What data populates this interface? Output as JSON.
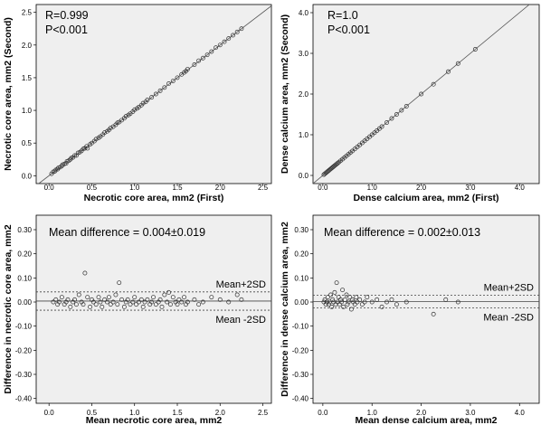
{
  "colors": {
    "panel_bg": "#efefef",
    "marker": "#333333",
    "ref_line": "#555555"
  },
  "chart_data": [
    {
      "type": "scatter",
      "id": "nc-corr",
      "xlabel": "Necrotic core area, mm2 (First)",
      "ylabel": "Necrotic core area, mm2 (Second)",
      "annotations": [
        "R=0.999",
        "P<0.001"
      ],
      "xlim": [
        -0.15,
        2.6
      ],
      "ylim": [
        -0.12,
        2.62
      ],
      "xticks": [
        "0.0",
        "0.5",
        "1.0",
        "1.5",
        "2.0",
        "2.5"
      ],
      "yticks": [
        "0.0",
        "0.5",
        "1.0",
        "1.5",
        "2.0",
        "2.5"
      ],
      "identity_line": true,
      "points": [
        [
          0.03,
          0.03
        ],
        [
          0.05,
          0.06
        ],
        [
          0.07,
          0.07
        ],
        [
          0.08,
          0.09
        ],
        [
          0.1,
          0.1
        ],
        [
          0.11,
          0.12
        ],
        [
          0.13,
          0.13
        ],
        [
          0.15,
          0.15
        ],
        [
          0.16,
          0.17
        ],
        [
          0.18,
          0.18
        ],
        [
          0.2,
          0.19
        ],
        [
          0.21,
          0.22
        ],
        [
          0.23,
          0.23
        ],
        [
          0.25,
          0.25
        ],
        [
          0.26,
          0.27
        ],
        [
          0.28,
          0.28
        ],
        [
          0.3,
          0.31
        ],
        [
          0.32,
          0.31
        ],
        [
          0.34,
          0.35
        ],
        [
          0.36,
          0.36
        ],
        [
          0.38,
          0.38
        ],
        [
          0.4,
          0.41
        ],
        [
          0.42,
          0.42
        ],
        [
          0.44,
          0.45
        ],
        [
          0.45,
          0.42
        ],
        [
          0.48,
          0.48
        ],
        [
          0.5,
          0.5
        ],
        [
          0.53,
          0.53
        ],
        [
          0.55,
          0.56
        ],
        [
          0.58,
          0.58
        ],
        [
          0.6,
          0.6
        ],
        [
          0.63,
          0.63
        ],
        [
          0.65,
          0.66
        ],
        [
          0.68,
          0.68
        ],
        [
          0.7,
          0.7
        ],
        [
          0.72,
          0.73
        ],
        [
          0.75,
          0.75
        ],
        [
          0.78,
          0.78
        ],
        [
          0.8,
          0.81
        ],
        [
          0.82,
          0.82
        ],
        [
          0.85,
          0.85
        ],
        [
          0.88,
          0.88
        ],
        [
          0.9,
          0.91
        ],
        [
          0.93,
          0.93
        ],
        [
          0.95,
          0.95
        ],
        [
          0.98,
          0.98
        ],
        [
          1.0,
          1.01
        ],
        [
          1.03,
          1.03
        ],
        [
          1.05,
          1.05
        ],
        [
          1.08,
          1.08
        ],
        [
          1.1,
          1.11
        ],
        [
          1.13,
          1.13
        ],
        [
          1.15,
          1.16
        ],
        [
          1.2,
          1.2
        ],
        [
          1.25,
          1.25
        ],
        [
          1.3,
          1.3
        ],
        [
          1.35,
          1.35
        ],
        [
          1.4,
          1.41
        ],
        [
          1.45,
          1.45
        ],
        [
          1.5,
          1.5
        ],
        [
          1.55,
          1.55
        ],
        [
          1.58,
          1.58
        ],
        [
          1.6,
          1.6
        ],
        [
          1.62,
          1.63
        ],
        [
          1.7,
          1.7
        ],
        [
          1.75,
          1.76
        ],
        [
          1.8,
          1.8
        ],
        [
          1.85,
          1.85
        ],
        [
          1.9,
          1.9
        ],
        [
          1.95,
          1.96
        ],
        [
          2.0,
          2.0
        ],
        [
          2.05,
          2.05
        ],
        [
          2.1,
          2.1
        ],
        [
          2.15,
          2.15
        ],
        [
          2.2,
          2.2
        ],
        [
          2.25,
          2.25
        ]
      ]
    },
    {
      "type": "scatter",
      "id": "dc-corr",
      "xlabel": "Dense calcium area, mm2 (First)",
      "ylabel": "Dense calcium area, mm2 (Second)",
      "annotations": [
        "R=1.0",
        "P<0.001"
      ],
      "xlim": [
        -0.2,
        4.4
      ],
      "ylim": [
        -0.2,
        4.2
      ],
      "xticks": [
        "0.0",
        "1.0",
        "2.0",
        "3.0",
        "4.0"
      ],
      "yticks": [
        "0.0",
        "1.0",
        "2.0",
        "3.0",
        "4.0"
      ],
      "identity_line": true,
      "points": [
        [
          0.02,
          0.02
        ],
        [
          0.04,
          0.04
        ],
        [
          0.06,
          0.06
        ],
        [
          0.08,
          0.08
        ],
        [
          0.1,
          0.1
        ],
        [
          0.12,
          0.12
        ],
        [
          0.14,
          0.14
        ],
        [
          0.16,
          0.16
        ],
        [
          0.18,
          0.18
        ],
        [
          0.2,
          0.2
        ],
        [
          0.22,
          0.22
        ],
        [
          0.24,
          0.24
        ],
        [
          0.26,
          0.26
        ],
        [
          0.28,
          0.28
        ],
        [
          0.3,
          0.3
        ],
        [
          0.33,
          0.33
        ],
        [
          0.36,
          0.36
        ],
        [
          0.4,
          0.4
        ],
        [
          0.44,
          0.44
        ],
        [
          0.48,
          0.48
        ],
        [
          0.52,
          0.52
        ],
        [
          0.56,
          0.56
        ],
        [
          0.6,
          0.6
        ],
        [
          0.65,
          0.65
        ],
        [
          0.7,
          0.7
        ],
        [
          0.75,
          0.75
        ],
        [
          0.8,
          0.8
        ],
        [
          0.85,
          0.85
        ],
        [
          0.9,
          0.9
        ],
        [
          0.95,
          0.95
        ],
        [
          1.0,
          1.0
        ],
        [
          1.05,
          1.05
        ],
        [
          1.1,
          1.1
        ],
        [
          1.15,
          1.15
        ],
        [
          1.2,
          1.2
        ],
        [
          1.3,
          1.3
        ],
        [
          1.4,
          1.4
        ],
        [
          1.5,
          1.5
        ],
        [
          1.6,
          1.6
        ],
        [
          1.7,
          1.7
        ],
        [
          2.0,
          2.0
        ],
        [
          2.25,
          2.24
        ],
        [
          2.55,
          2.55
        ],
        [
          2.75,
          2.75
        ],
        [
          3.1,
          3.1
        ]
      ]
    },
    {
      "type": "scatter",
      "id": "nc-ba",
      "xlabel": "Mean necrotic core area, mm2",
      "ylabel": "Difference in necrotic core area, mm2",
      "annotations": [
        "Mean difference = 0.004±0.019"
      ],
      "reference_labels": [
        "Mean+2SD",
        "Mean -2SD"
      ],
      "mean": 0.004,
      "upper": 0.042,
      "lower": -0.034,
      "xlim": [
        -0.15,
        2.6
      ],
      "ylim": [
        -0.42,
        0.36
      ],
      "xticks": [
        "0.0",
        "0.5",
        "1.0",
        "1.5",
        "2.0",
        "2.5"
      ],
      "yticks": [
        "0.30",
        "0.20",
        "0.10",
        "0.00",
        "-0.10",
        "-0.20",
        "-0.30",
        "-0.40"
      ],
      "points": [
        [
          0.05,
          0.0
        ],
        [
          0.08,
          0.01
        ],
        [
          0.1,
          -0.01
        ],
        [
          0.12,
          0.0
        ],
        [
          0.15,
          0.02
        ],
        [
          0.18,
          -0.01
        ],
        [
          0.2,
          0.0
        ],
        [
          0.22,
          0.01
        ],
        [
          0.25,
          -0.02
        ],
        [
          0.28,
          0.0
        ],
        [
          0.3,
          0.01
        ],
        [
          0.32,
          -0.01
        ],
        [
          0.35,
          0.03
        ],
        [
          0.38,
          0.0
        ],
        [
          0.4,
          -0.01
        ],
        [
          0.42,
          0.12
        ],
        [
          0.45,
          0.02
        ],
        [
          0.48,
          -0.02
        ],
        [
          0.5,
          0.01
        ],
        [
          0.52,
          0.0
        ],
        [
          0.55,
          -0.01
        ],
        [
          0.58,
          0.02
        ],
        [
          0.6,
          0.0
        ],
        [
          0.62,
          -0.02
        ],
        [
          0.65,
          0.01
        ],
        [
          0.68,
          0.0
        ],
        [
          0.7,
          0.02
        ],
        [
          0.72,
          -0.01
        ],
        [
          0.75,
          0.0
        ],
        [
          0.78,
          0.03
        ],
        [
          0.8,
          -0.01
        ],
        [
          0.82,
          0.08
        ],
        [
          0.85,
          0.01
        ],
        [
          0.88,
          -0.02
        ],
        [
          0.9,
          0.0
        ],
        [
          0.92,
          0.01
        ],
        [
          0.95,
          -0.01
        ],
        [
          0.98,
          0.0
        ],
        [
          1.0,
          0.02
        ],
        [
          1.02,
          -0.01
        ],
        [
          1.05,
          0.0
        ],
        [
          1.08,
          0.01
        ],
        [
          1.1,
          -0.02
        ],
        [
          1.12,
          0.0
        ],
        [
          1.15,
          0.01
        ],
        [
          1.18,
          -0.01
        ],
        [
          1.2,
          0.0
        ],
        [
          1.22,
          0.02
        ],
        [
          1.25,
          -0.01
        ],
        [
          1.28,
          0.0
        ],
        [
          1.3,
          0.01
        ],
        [
          1.32,
          -0.02
        ],
        [
          1.35,
          0.03
        ],
        [
          1.38,
          0.0
        ],
        [
          1.4,
          0.04
        ],
        [
          1.42,
          -0.01
        ],
        [
          1.45,
          0.02
        ],
        [
          1.48,
          0.0
        ],
        [
          1.5,
          -0.01
        ],
        [
          1.52,
          0.01
        ],
        [
          1.55,
          0.0
        ],
        [
          1.58,
          0.02
        ],
        [
          1.6,
          -0.01
        ],
        [
          1.62,
          0.0
        ],
        [
          1.7,
          0.01
        ],
        [
          1.75,
          -0.01
        ],
        [
          1.8,
          0.0
        ],
        [
          1.9,
          0.02
        ],
        [
          2.0,
          0.01
        ],
        [
          2.1,
          0.0
        ],
        [
          2.2,
          0.03
        ],
        [
          2.25,
          0.01
        ]
      ]
    },
    {
      "type": "scatter",
      "id": "dc-ba",
      "xlabel": "Mean dense calcium area, mm2",
      "ylabel": "Difference in dense calcium area, mm2",
      "annotations": [
        "Mean difference = 0.002±0.013"
      ],
      "reference_labels": [
        "Mean+2SD",
        "Mean -2SD"
      ],
      "mean": 0.002,
      "upper": 0.028,
      "lower": -0.024,
      "xlim": [
        -0.2,
        4.4
      ],
      "ylim": [
        -0.42,
        0.36
      ],
      "xticks": [
        "0.0",
        "1.0",
        "2.0",
        "3.0",
        "4.0"
      ],
      "yticks": [
        "0.30",
        "0.20",
        "0.10",
        "0.00",
        "-0.10",
        "-0.20",
        "-0.30",
        "-0.40"
      ],
      "points": [
        [
          0.02,
          0.0
        ],
        [
          0.04,
          0.01
        ],
        [
          0.06,
          -0.01
        ],
        [
          0.08,
          0.0
        ],
        [
          0.1,
          0.02
        ],
        [
          0.12,
          -0.01
        ],
        [
          0.14,
          0.0
        ],
        [
          0.16,
          0.03
        ],
        [
          0.18,
          -0.02
        ],
        [
          0.2,
          0.01
        ],
        [
          0.22,
          0.0
        ],
        [
          0.24,
          0.04
        ],
        [
          0.26,
          -0.01
        ],
        [
          0.28,
          0.08
        ],
        [
          0.3,
          0.0
        ],
        [
          0.32,
          0.02
        ],
        [
          0.34,
          -0.01
        ],
        [
          0.36,
          0.01
        ],
        [
          0.38,
          0.0
        ],
        [
          0.4,
          0.05
        ],
        [
          0.42,
          -0.02
        ],
        [
          0.45,
          0.01
        ],
        [
          0.48,
          0.03
        ],
        [
          0.5,
          -0.01
        ],
        [
          0.52,
          0.0
        ],
        [
          0.55,
          0.02
        ],
        [
          0.58,
          -0.03
        ],
        [
          0.6,
          0.01
        ],
        [
          0.62,
          0.0
        ],
        [
          0.65,
          -0.01
        ],
        [
          0.68,
          0.02
        ],
        [
          0.7,
          0.0
        ],
        [
          0.75,
          0.01
        ],
        [
          0.8,
          -0.01
        ],
        [
          0.85,
          0.0
        ],
        [
          0.9,
          0.02
        ],
        [
          1.0,
          0.0
        ],
        [
          1.1,
          0.01
        ],
        [
          1.2,
          -0.02
        ],
        [
          1.3,
          0.0
        ],
        [
          1.4,
          0.01
        ],
        [
          1.5,
          -0.01
        ],
        [
          1.7,
          0.0
        ],
        [
          2.25,
          -0.05
        ],
        [
          2.5,
          0.01
        ],
        [
          2.75,
          0.0
        ]
      ]
    }
  ]
}
